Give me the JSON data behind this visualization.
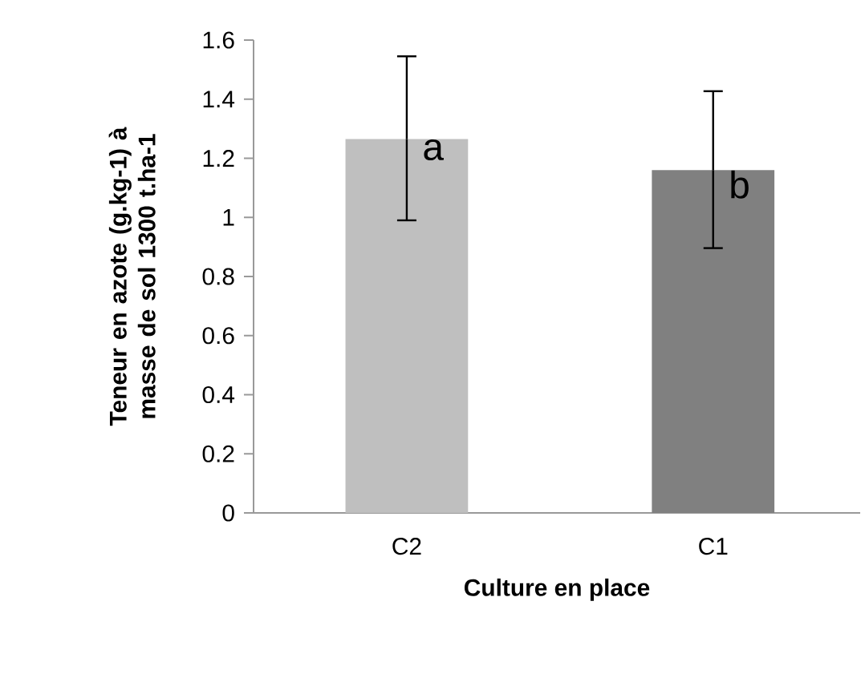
{
  "chart_data": {
    "type": "bar",
    "xlabel": "Culture en place",
    "ylabel": "Teneur en azote (g.kg-1) à masse de sol 1300 t.ha-1",
    "categories": [
      "C2",
      "C1"
    ],
    "values": [
      1.265,
      1.16
    ],
    "colors": [
      "#bfbfbf",
      "#808080"
    ],
    "errors": [
      [
        0.99,
        1.545
      ],
      [
        0.896,
        1.427
      ]
    ],
    "ylim": [
      0,
      1.6
    ],
    "yticks": [
      0,
      0.2,
      0.4,
      0.6,
      0.8,
      1,
      1.2,
      1.4,
      1.6
    ],
    "annotations": [
      {
        "text": "a",
        "x": "C2",
        "y": 1.265
      },
      {
        "text": "b",
        "x": "C1",
        "y": 1.16
      }
    ],
    "grid": false
  }
}
